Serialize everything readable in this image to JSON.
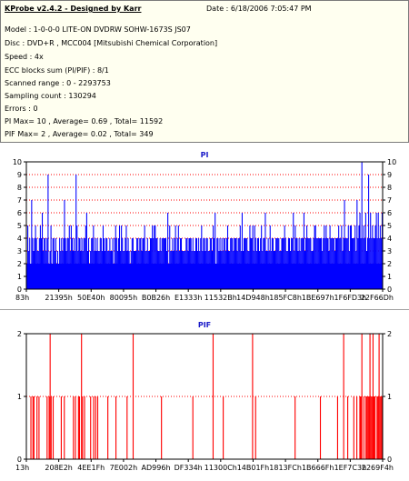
{
  "info": {
    "title": "KProbe v2.4.2 - Designed by Karr",
    "date": "Date : 6/18/2006 7:05:47 PM",
    "lines": [
      "Model : 1-0-0-0 LITE-ON DVDRW SOHW-1673S JS07",
      "Disc : DVD+R , MCC004 [Mitsubishi Chemical Corporation]",
      "Speed : 4x",
      "ECC blocks sum (PI/PIF) : 8/1",
      "Scanned range : 0 - 2293753",
      "Sampling count : 130294",
      "Errors : 0",
      "PI Max= 10 , Average= 0.69 , Total= 11592",
      "PIF Max= 2 , Average= 0.02 , Total= 349"
    ]
  },
  "colors": {
    "pi": "#0000ff",
    "pif": "#ff0000",
    "grid": "#ff0000",
    "title": "#1a1ac8",
    "background": "#ffffff"
  },
  "chart_data": [
    {
      "type": "bar",
      "title": "PI",
      "ylim": [
        0,
        10
      ],
      "yticks": [
        0,
        1,
        2,
        3,
        4,
        5,
        6,
        7,
        8,
        9,
        10
      ],
      "xticklabels": [
        "83h",
        "21395h",
        "50E40h",
        "80095h",
        "B0B26h",
        "E1333h",
        "11532Bh",
        "14D948h",
        "185FC8h",
        "1BE697h",
        "1F6FD3h",
        "22F66Dh"
      ],
      "grid": true,
      "baseline_range": [
        2,
        4
      ],
      "values": [
        2,
        5,
        3,
        4,
        2,
        7,
        4,
        3,
        4,
        5,
        4,
        3,
        3,
        4,
        5,
        4,
        6,
        3,
        4,
        4,
        3,
        4,
        9,
        2,
        3,
        5,
        2,
        4,
        4,
        3,
        4,
        2,
        3,
        2,
        4,
        3,
        4,
        3,
        4,
        7,
        4,
        3,
        4,
        4,
        5,
        3,
        5,
        4,
        3,
        4,
        3,
        9,
        5,
        3,
        4,
        4,
        3,
        4,
        3,
        4,
        4,
        5,
        6,
        3,
        4,
        2,
        3,
        4,
        4,
        5,
        3,
        4,
        3,
        4,
        3,
        3,
        4,
        4,
        3,
        5,
        4,
        3,
        4,
        4,
        3,
        3,
        4,
        3,
        3,
        4,
        2,
        4,
        5,
        4,
        3,
        4,
        5,
        3,
        5,
        4,
        3,
        3,
        4,
        5,
        3,
        4,
        3,
        2,
        3,
        4,
        4,
        3,
        3,
        3,
        4,
        4,
        3,
        4,
        4,
        3,
        4,
        4,
        5,
        3,
        3,
        4,
        3,
        3,
        4,
        4,
        5,
        4,
        5,
        5,
        4,
        4,
        3,
        3,
        4,
        3,
        4,
        4,
        4,
        4,
        4,
        3,
        6,
        2,
        5,
        3,
        3,
        4,
        3,
        4,
        5,
        3,
        4,
        5,
        3,
        4,
        4,
        3,
        3,
        3,
        3,
        4,
        4,
        3,
        4,
        4,
        4,
        3,
        4,
        3,
        3,
        4,
        4,
        3,
        4,
        3,
        4,
        5,
        3,
        4,
        4,
        3,
        4,
        4,
        3,
        3,
        4,
        4,
        3,
        5,
        4,
        6,
        2,
        4,
        4,
        3,
        4,
        3,
        4,
        3,
        4,
        4,
        3,
        4,
        5,
        3,
        3,
        4,
        4,
        4,
        3,
        4,
        4,
        4,
        3,
        4,
        4,
        5,
        3,
        6,
        3,
        4,
        4,
        4,
        4,
        3,
        3,
        5,
        4,
        4,
        5,
        3,
        5,
        4,
        3,
        4,
        4,
        3,
        4,
        5,
        3,
        4,
        4,
        6,
        3,
        3,
        4,
        3,
        5,
        3,
        4,
        4,
        3,
        3,
        4,
        4,
        4,
        4,
        3,
        3,
        4,
        4,
        4,
        5,
        4,
        3,
        3,
        4,
        4,
        3,
        4,
        4,
        6,
        3,
        5,
        4,
        4,
        3,
        4,
        3,
        4,
        4,
        4,
        6,
        3,
        4,
        5,
        4,
        4,
        4,
        4,
        3,
        3,
        4,
        5,
        5,
        4,
        4,
        4,
        4,
        4,
        4,
        3,
        4,
        5,
        4,
        5,
        4,
        4,
        3,
        5,
        4,
        4,
        4,
        4,
        3,
        4,
        4,
        4,
        5,
        4,
        4,
        5,
        3,
        4,
        7,
        4,
        4,
        4,
        5,
        3,
        5,
        5,
        4,
        4,
        4,
        5,
        3,
        7,
        4,
        5,
        6,
        4,
        10,
        4,
        5,
        4,
        6,
        3,
        4,
        9,
        4,
        6,
        4,
        5,
        4,
        4,
        5,
        6,
        4,
        6,
        4,
        5,
        4,
        6
      ]
    },
    {
      "type": "bar",
      "title": "PIF",
      "ylim": [
        0,
        2
      ],
      "yticks": [
        0,
        1,
        2
      ],
      "xticklabels": [
        "13h",
        "208E2h",
        "4EE1Fh",
        "7E002h",
        "AD996h",
        "DF334h",
        "11300Ch",
        "14B01Fh",
        "1813FCh",
        "1B666Fh",
        "1EF7C3h",
        "2269F4h"
      ],
      "grid": true,
      "values": [
        0,
        0,
        0,
        0,
        1,
        0,
        1,
        1,
        0,
        0,
        1,
        0,
        1,
        0,
        0,
        0,
        0,
        0,
        0,
        0,
        1,
        0,
        1,
        2,
        1,
        0,
        1,
        0,
        0,
        0,
        0,
        0,
        0,
        0,
        1,
        0,
        0,
        1,
        0,
        0,
        0,
        0,
        0,
        0,
        0,
        0,
        1,
        0,
        1,
        0,
        0,
        1,
        1,
        0,
        2,
        1,
        0,
        1,
        0,
        0,
        0,
        0,
        0,
        1,
        0,
        0,
        1,
        0,
        1,
        0,
        1,
        0,
        0,
        0,
        0,
        0,
        0,
        0,
        0,
        0,
        1,
        0,
        0,
        0,
        0,
        0,
        0,
        0,
        1,
        0,
        0,
        0,
        0,
        0,
        0,
        0,
        0,
        0,
        0,
        1,
        0,
        0,
        0,
        0,
        0,
        2,
        0,
        0,
        0,
        0,
        0,
        0,
        0,
        0,
        0,
        0,
        0,
        0,
        0,
        0,
        0,
        0,
        0,
        0,
        0,
        0,
        0,
        0,
        0,
        0,
        0,
        0,
        0,
        1,
        0,
        0,
        0,
        0,
        0,
        0,
        0,
        0,
        0,
        0,
        0,
        0,
        0,
        0,
        0,
        0,
        0,
        0,
        0,
        0,
        0,
        0,
        0,
        0,
        0,
        0,
        0,
        0,
        0,
        0,
        1,
        0,
        0,
        0,
        0,
        0,
        0,
        0,
        0,
        0,
        0,
        0,
        0,
        0,
        0,
        0,
        0,
        0,
        0,
        0,
        2,
        0,
        0,
        0,
        0,
        0,
        0,
        0,
        0,
        0,
        1,
        0,
        0,
        0,
        0,
        0,
        0,
        0,
        0,
        0,
        0,
        0,
        0,
        0,
        0,
        0,
        0,
        0,
        0,
        0,
        0,
        0,
        0,
        0,
        0,
        0,
        0,
        0,
        0,
        2,
        0,
        0,
        1,
        0,
        0,
        0,
        0,
        0,
        0,
        0,
        0,
        0,
        0,
        0,
        0,
        0,
        0,
        0,
        0,
        0,
        0,
        0,
        0,
        0,
        0,
        0,
        0,
        0,
        0,
        0,
        0,
        0,
        0,
        0,
        0,
        0,
        0,
        0,
        0,
        0,
        0,
        1,
        0,
        0,
        0,
        0,
        0,
        0,
        0,
        0,
        0,
        0,
        0,
        0,
        0,
        0,
        0,
        0,
        0,
        0,
        0,
        0,
        0,
        0,
        0,
        0,
        1,
        0,
        0,
        0,
        0,
        0,
        0,
        0,
        0,
        0,
        0,
        0,
        0,
        0,
        0,
        0,
        0,
        1,
        0,
        0,
        0,
        0,
        0,
        2,
        0,
        0,
        0,
        1,
        0,
        0,
        0,
        0,
        0,
        1,
        0,
        0,
        1,
        0,
        0,
        1,
        1,
        2,
        0,
        1,
        0,
        1,
        1,
        1,
        1,
        2,
        1,
        1,
        2,
        1,
        1,
        0,
        1,
        1,
        2,
        1,
        1,
        1
      ]
    }
  ]
}
